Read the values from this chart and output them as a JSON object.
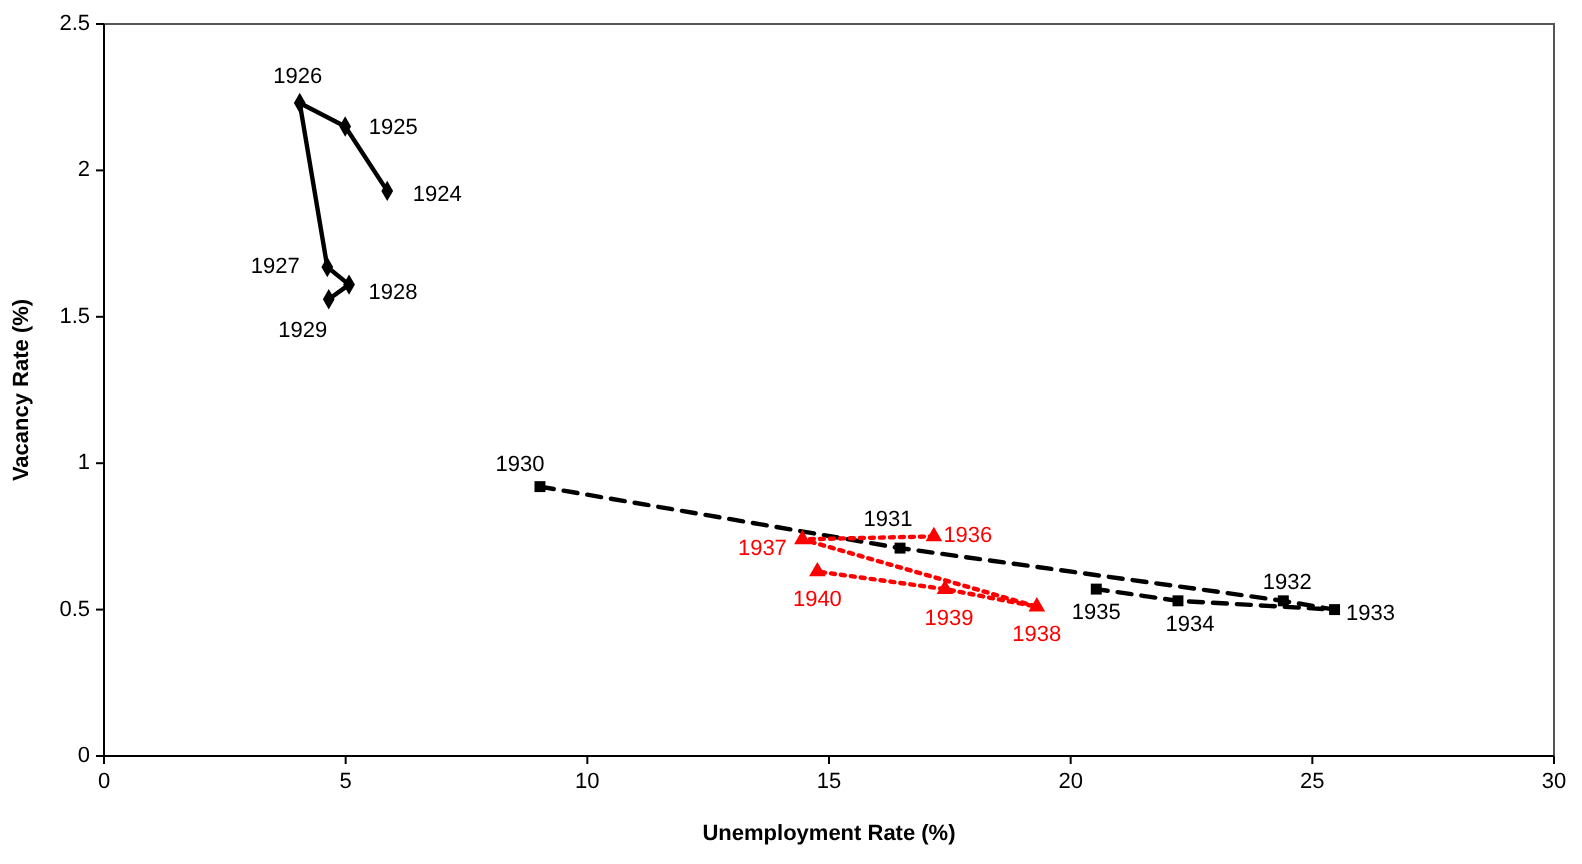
{
  "chart_data": {
    "type": "line",
    "xlabel": "Unemployment Rate (%)",
    "ylabel": "Vacancy Rate (%)",
    "xlim": [
      0,
      30
    ],
    "xticks": [
      0,
      5,
      10,
      15,
      20,
      25,
      30
    ],
    "ylim": [
      0,
      2.5
    ],
    "yticks": [
      0,
      0.5,
      1,
      1.5,
      2,
      2.5
    ],
    "series": [
      {
        "color": "#000000",
        "marker": "diamond",
        "line_style": "solid",
        "x": [
          5.86,
          4.99,
          4.05,
          4.62,
          5.07,
          4.65
        ],
        "values": [
          1.93,
          2.15,
          2.23,
          1.67,
          1.61,
          1.56
        ]
      },
      {
        "color": "#000000",
        "marker": "square",
        "line_style": "dashed",
        "x": [
          9.02,
          16.47,
          24.4,
          25.46,
          22.22,
          20.53
        ],
        "values": [
          0.92,
          0.71,
          0.53,
          0.5,
          0.53,
          0.57
        ]
      },
      {
        "color": "#ff0000",
        "marker": "triangle",
        "line_style": "dotted",
        "x": [
          17.17,
          14.45,
          19.3,
          17.4,
          14.76
        ],
        "values": [
          0.75,
          0.74,
          0.51,
          0.57,
          0.63
        ]
      }
    ],
    "annotations": [
      {
        "text": "1924",
        "x": 5.86,
        "y": 1.93
      },
      {
        "text": "1925",
        "x": 4.99,
        "y": 2.15
      },
      {
        "text": "1926",
        "x": 4.05,
        "y": 2.23
      },
      {
        "text": "1927",
        "x": 4.62,
        "y": 1.67
      },
      {
        "text": "1928",
        "x": 5.07,
        "y": 1.61
      },
      {
        "text": "1929",
        "x": 4.65,
        "y": 1.56
      },
      {
        "text": "1930",
        "x": 9.02,
        "y": 0.92
      },
      {
        "text": "1931",
        "x": 16.47,
        "y": 0.71
      },
      {
        "text": "1932",
        "x": 24.4,
        "y": 0.53
      },
      {
        "text": "1933",
        "x": 25.46,
        "y": 0.5
      },
      {
        "text": "1934",
        "x": 22.22,
        "y": 0.53
      },
      {
        "text": "1935",
        "x": 20.53,
        "y": 0.57
      },
      {
        "text": "1936",
        "x": 17.17,
        "y": 0.75
      },
      {
        "text": "1937",
        "x": 14.45,
        "y": 0.74
      },
      {
        "text": "1938",
        "x": 19.3,
        "y": 0.51
      },
      {
        "text": "1939",
        "x": 17.4,
        "y": 0.57
      },
      {
        "text": "1940",
        "x": 14.76,
        "y": 0.63
      }
    ]
  }
}
